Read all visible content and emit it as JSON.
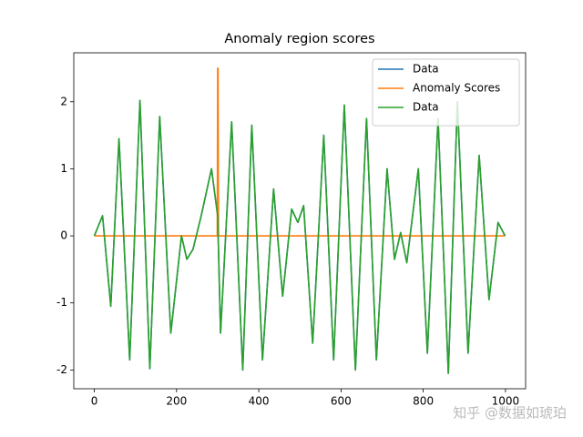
{
  "chart_data": {
    "type": "line",
    "title": "Anomaly region scores",
    "series": [
      {
        "name": "Data",
        "color": "#1f77b4",
        "x": [
          0,
          20,
          40,
          60,
          86,
          111,
          135,
          159,
          186,
          212,
          225,
          240,
          260,
          285,
          300,
          307,
          334,
          361,
          383,
          409,
          436,
          458,
          480,
          495,
          509,
          531,
          558,
          582,
          608,
          635,
          662,
          686,
          712,
          730,
          745,
          760,
          788,
          810,
          836,
          861,
          883,
          909,
          936,
          960,
          982,
          999
        ],
        "values": [
          0,
          0.3,
          -1.05,
          1.45,
          -1.85,
          2.02,
          -1.98,
          1.78,
          -1.45,
          0.0,
          -0.35,
          -0.2,
          0.3,
          1.0,
          0.3,
          -1.45,
          1.7,
          -2.0,
          1.65,
          -1.85,
          0.7,
          -0.9,
          0.4,
          0.2,
          0.45,
          -1.6,
          1.5,
          -1.85,
          1.95,
          -2.0,
          1.75,
          -1.85,
          1.0,
          -0.35,
          0.05,
          -0.4,
          1.0,
          -1.75,
          1.75,
          -2.05,
          2.0,
          -1.75,
          1.2,
          -0.95,
          0.2,
          0
        ]
      },
      {
        "name": "Anomaly Scores",
        "color": "#ff7f0e",
        "x": [
          0,
          299,
          300,
          301,
          302,
          999
        ],
        "values": [
          0,
          0,
          2.5,
          2.5,
          0,
          0
        ]
      },
      {
        "name": "Data",
        "color": "#2ca02c",
        "x": [
          0,
          20,
          40,
          60,
          86,
          111,
          135,
          159,
          186,
          212,
          225,
          240,
          260,
          285,
          300,
          307,
          334,
          361,
          383,
          409,
          436,
          458,
          480,
          495,
          509,
          531,
          558,
          582,
          608,
          635,
          662,
          686,
          712,
          730,
          745,
          760,
          788,
          810,
          836,
          861,
          883,
          909,
          936,
          960,
          982,
          999
        ],
        "values": [
          0,
          0.3,
          -1.05,
          1.45,
          -1.85,
          2.02,
          -1.98,
          1.78,
          -1.45,
          0.0,
          -0.35,
          -0.2,
          0.3,
          1.0,
          0.3,
          -1.45,
          1.7,
          -2.0,
          1.65,
          -1.85,
          0.7,
          -0.9,
          0.4,
          0.2,
          0.45,
          -1.6,
          1.5,
          -1.85,
          1.95,
          -2.0,
          1.75,
          -1.85,
          1.0,
          -0.35,
          0.05,
          -0.4,
          1.0,
          -1.75,
          1.75,
          -2.05,
          2.0,
          -1.75,
          1.2,
          -0.95,
          0.2,
          0
        ]
      }
    ],
    "xlim": [
      -49.95,
      1048.95
    ],
    "ylim": [
      -2.28,
      2.73
    ],
    "xticks": [
      0,
      200,
      400,
      600,
      800,
      1000
    ],
    "yticks": [
      -2,
      -1,
      0,
      1,
      2
    ],
    "legend": "upper right"
  },
  "watermark": "知乎 @数据如琥珀"
}
